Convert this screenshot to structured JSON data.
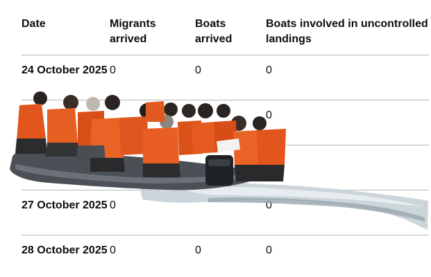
{
  "table": {
    "headers": [
      "Date",
      "Migrants arrived",
      "Boats arrived",
      "Boats involved in uncontrolled landings"
    ],
    "rows": [
      [
        "24 October 2025",
        "0",
        "0",
        "0"
      ],
      [
        "",
        "",
        "",
        "0"
      ],
      [
        "",
        "",
        "",
        ""
      ],
      [
        "27 October 2025",
        "0",
        "",
        "0"
      ],
      [
        "28 October 2025",
        "0",
        "0",
        "0"
      ]
    ]
  },
  "photo": {
    "icon": "migrant-boat-photo",
    "colors": {
      "boat_hull": "#4b5056",
      "life_jacket": "#e2551c",
      "water": "#c9d3d8"
    }
  }
}
